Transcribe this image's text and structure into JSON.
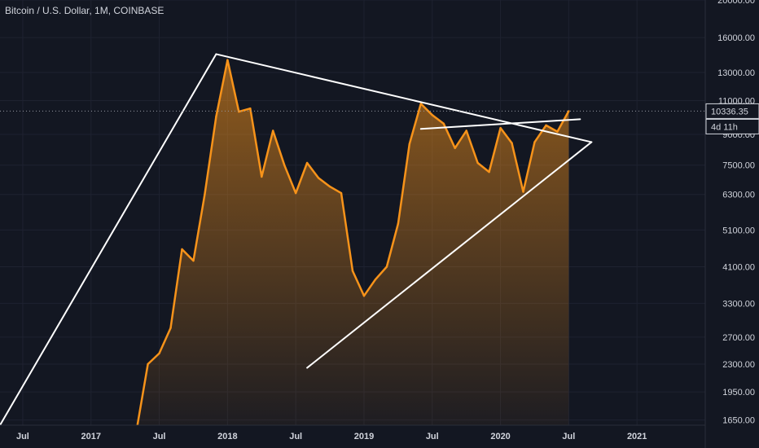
{
  "colors": {
    "background": "#131722",
    "grid": "#1e2230",
    "axis_text": "#d1d4dc",
    "price_line": "#f7931a",
    "trend_line": "#ffffff"
  },
  "chart_data": {
    "type": "area",
    "title": "Bitcoin / U.S. Dollar, 1M, COINBASE",
    "y_scale": "log",
    "ylim": [
      1600,
      20000
    ],
    "grid": true,
    "x_tick_labels": [
      "Jul",
      "2017",
      "Jul",
      "2018",
      "Jul",
      "2019",
      "Jul",
      "2020",
      "Jul",
      "2021"
    ],
    "y_tick_labels": [
      "20000.00",
      "16000.00",
      "13000.00",
      "11000.00",
      "9000.00",
      "7500.00",
      "6300.00",
      "5100.00",
      "4100.00",
      "3300.00",
      "2700.00",
      "2300.00",
      "1950.00",
      "1650.00"
    ],
    "y_ticks": [
      20000,
      16000,
      13000,
      11000,
      9000,
      7500,
      6300,
      5100,
      4100,
      3300,
      2700,
      2300,
      1950,
      1650
    ],
    "x_ticks": [
      "2016-07",
      "2017-01",
      "2017-07",
      "2018-01",
      "2018-07",
      "2019-01",
      "2019-07",
      "2020-01",
      "2020-07",
      "2021-01"
    ],
    "x_range": [
      "2016-05",
      "2021-07"
    ],
    "current_price_label": "10336.35",
    "current_price": 10336,
    "countdown_label": "4d 11h",
    "series": [
      {
        "x": [
          "2017-05",
          "2017-06",
          "2017-07",
          "2017-08",
          "2017-09",
          "2017-10",
          "2017-11",
          "2017-12",
          "2018-01",
          "2018-02",
          "2018-03",
          "2018-04",
          "2018-05",
          "2018-06",
          "2018-07",
          "2018-08",
          "2018-09",
          "2018-10",
          "2018-11",
          "2018-12",
          "2019-01",
          "2019-02",
          "2019-03",
          "2019-04",
          "2019-05",
          "2019-06",
          "2019-07",
          "2019-08",
          "2019-09",
          "2019-10",
          "2019-11",
          "2019-12",
          "2020-01",
          "2020-02",
          "2020-03",
          "2020-04",
          "2020-05",
          "2020-06",
          "2020-07"
        ],
        "values": [
          1550,
          2300,
          2450,
          2850,
          4550,
          4250,
          6300,
          10000,
          14000,
          10300,
          10500,
          7000,
          9200,
          7500,
          6350,
          7600,
          6950,
          6600,
          6350,
          4000,
          3450,
          3800,
          4100,
          5300,
          8500,
          10800,
          10100,
          9600,
          8300,
          9200,
          7600,
          7200,
          9350,
          8550,
          6400,
          8600,
          9500,
          9150,
          10336
        ]
      }
    ],
    "trend_lines": [
      {
        "from": [
          "2016-05",
          1600
        ],
        "to": [
          "2017-12",
          14500
        ]
      },
      {
        "from": [
          "2017-12",
          14500
        ],
        "to": [
          "2020-09",
          8600
        ]
      },
      {
        "from": [
          "2018-08",
          2250
        ],
        "to": [
          "2020-09",
          8600
        ]
      },
      {
        "from": [
          "2019-06",
          9300
        ],
        "to": [
          "2020-08",
          9850
        ]
      }
    ]
  }
}
